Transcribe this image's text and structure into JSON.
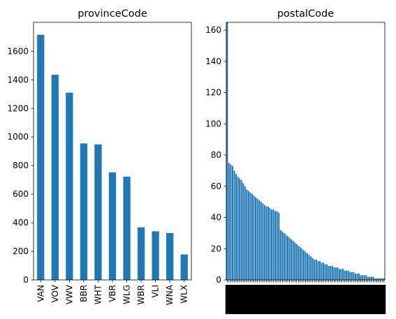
{
  "colors": {
    "bar": "#1f77b4",
    "axis": "#000000",
    "text": "#000000"
  },
  "chart_data": [
    {
      "type": "bar",
      "title": "provinceCode",
      "categories": [
        "VAN",
        "VOV",
        "VWV",
        "BBR",
        "WHT",
        "VBR",
        "WLG",
        "WBR",
        "VLI",
        "WNA",
        "WLX"
      ],
      "values": [
        1715,
        1435,
        1310,
        955,
        948,
        752,
        722,
        368,
        340,
        328,
        178
      ],
      "ylim": [
        0,
        1802
      ],
      "yticks": [
        0,
        200,
        400,
        600,
        800,
        1000,
        1200,
        1400,
        1600
      ],
      "grid": false
    },
    {
      "type": "bar",
      "title": "postalCode",
      "values": [
        165,
        75,
        74,
        73,
        70,
        68,
        66,
        65,
        64,
        62,
        60,
        58,
        57,
        56,
        55,
        54,
        53,
        52,
        51,
        50,
        49,
        48,
        47,
        47,
        46,
        45,
        45,
        44,
        44,
        43,
        32,
        31,
        30,
        29,
        28,
        27,
        26,
        25,
        24,
        23,
        22,
        21,
        20,
        19,
        18,
        17,
        16,
        15,
        14,
        13,
        13,
        12,
        12,
        11,
        11,
        10,
        10,
        9,
        9,
        9,
        8,
        8,
        8,
        7,
        7,
        7,
        6,
        6,
        6,
        5,
        5,
        5,
        4,
        4,
        4,
        3,
        3,
        3,
        3,
        2,
        2,
        2,
        2,
        1,
        1,
        1,
        1,
        1,
        1
      ],
      "ylim": [
        0,
        165
      ],
      "yticks": [
        0,
        20,
        40,
        60,
        80,
        100,
        120,
        140,
        160
      ],
      "grid": false
    }
  ]
}
